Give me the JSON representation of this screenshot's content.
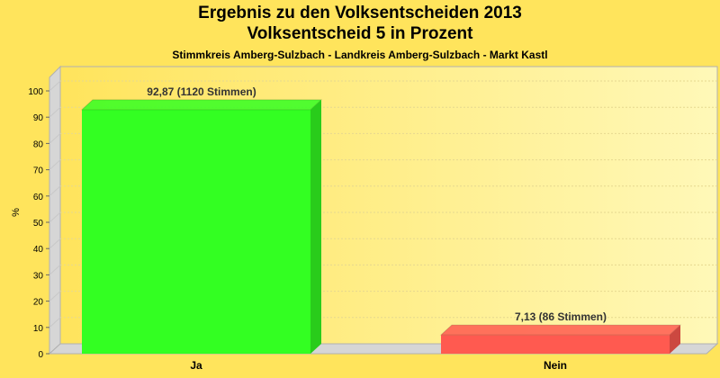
{
  "header": {
    "title_line1": "Ergebnis zu den Volksentscheiden 2013",
    "title_line2": "Volksentscheid 5 in Prozent",
    "subtitle": "Stimmkreis Amberg-Sulzbach - Landkreis Amberg-Sulzbach - Markt Kastl"
  },
  "chart_data": {
    "type": "bar",
    "title": "Ergebnis zu den Volksentscheiden 2013 / Volksentscheid 5 in Prozent",
    "subtitle": "Stimmkreis Amberg-Sulzbach - Landkreis Amberg-Sulzbach - Markt Kastl",
    "xlabel": "",
    "ylabel": "%",
    "ylim": [
      0,
      100
    ],
    "yticks": [
      0,
      10,
      20,
      30,
      40,
      50,
      60,
      70,
      80,
      90,
      100
    ],
    "categories": [
      "Ja",
      "Nein"
    ],
    "values": [
      92.87,
      7.13
    ],
    "data_labels": [
      "92,87 (1120 Stimmen)",
      "7,13 (86 Stimmen)"
    ],
    "colors": [
      "#33ff22",
      "#ff5a50"
    ],
    "grid": true,
    "legend": "none"
  }
}
